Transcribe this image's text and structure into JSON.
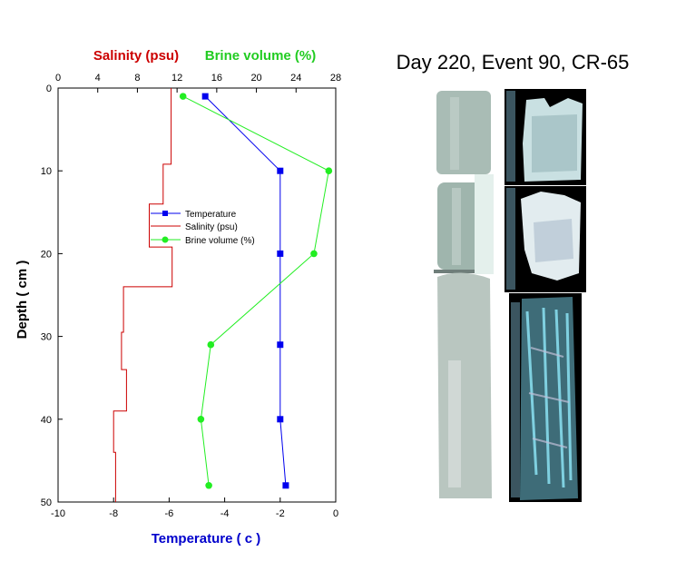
{
  "photo_title": "Day 220, Event 90, CR-65",
  "colors": {
    "temperature": "#0000ee",
    "salinity": "#cc0000",
    "brine": "#22ee22",
    "axis": "#000000"
  },
  "chart_data": {
    "type": "line",
    "ylabel": "Depth ( cm )",
    "xlabel_bottom": "Temperature ( c )",
    "xlabel_top_salinity": "Salinity (psu)",
    "xlabel_top_brine": "Brine volume (%)",
    "ylim": [
      0,
      50
    ],
    "y_ticks": [
      0,
      10,
      20,
      30,
      40,
      50
    ],
    "xlim_temperature": [
      -10,
      0
    ],
    "x_ticks_temperature": [
      -10,
      -8,
      -6,
      -4,
      -2,
      0
    ],
    "xlim_top": [
      0,
      28
    ],
    "x_ticks_top": [
      0,
      4,
      8,
      12,
      16,
      20,
      24,
      28
    ],
    "legend_placement": "center",
    "series": [
      {
        "name": "Temperature",
        "axis": "bottom",
        "marker": "square",
        "points": [
          [
            -4.7,
            1
          ],
          [
            -2.0,
            10
          ],
          [
            -2.0,
            20
          ],
          [
            -2.0,
            31
          ],
          [
            -2.0,
            40
          ],
          [
            -1.8,
            48
          ]
        ]
      },
      {
        "name": "Salinity (psu)",
        "axis": "top",
        "marker": "none",
        "step": true,
        "points": [
          [
            11.4,
            0
          ],
          [
            11.4,
            9.2
          ],
          [
            10.6,
            9.2
          ],
          [
            10.6,
            14
          ],
          [
            9.2,
            14
          ],
          [
            9.2,
            19.2
          ],
          [
            11.5,
            19.2
          ],
          [
            11.5,
            24
          ],
          [
            6.6,
            24
          ],
          [
            6.6,
            29.5
          ],
          [
            6.4,
            29.5
          ],
          [
            6.4,
            34
          ],
          [
            6.9,
            34
          ],
          [
            6.9,
            39
          ],
          [
            5.6,
            39
          ],
          [
            5.6,
            44
          ],
          [
            5.8,
            44
          ],
          [
            5.8,
            50
          ]
        ]
      },
      {
        "name": "Brine volume (%)",
        "axis": "top",
        "marker": "circle",
        "points": [
          [
            12.6,
            1
          ],
          [
            27.3,
            10
          ],
          [
            25.8,
            20
          ],
          [
            15.4,
            31
          ],
          [
            14.4,
            40
          ],
          [
            15.2,
            48
          ]
        ]
      }
    ]
  }
}
